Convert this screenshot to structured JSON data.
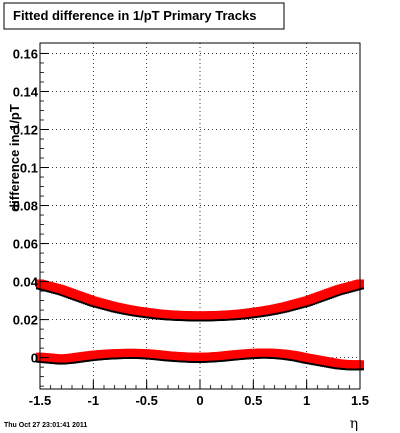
{
  "chart_data": {
    "type": "scatter",
    "title": "Fitted difference in 1/pT  Primary Tracks",
    "ylabel": "difference in 1/pT",
    "xlabel": "η",
    "xlim": [
      -1.5,
      1.5
    ],
    "ylim": [
      -0.0165,
      0.1655
    ],
    "grid": true,
    "x_ticks": [
      -1.5,
      -1,
      -0.5,
      0,
      0.5,
      1,
      1.5
    ],
    "x_tick_labels": [
      "-1.5",
      "-1",
      "-0.5",
      "0",
      "0.5",
      "1",
      "1.5"
    ],
    "y_ticks": [
      0,
      0.02,
      0.04,
      0.06,
      0.08,
      0.1,
      0.12,
      0.14,
      0.16
    ],
    "y_tick_labels": [
      "0",
      "0.02",
      "0.04",
      "0.06",
      "0.08",
      "0.1",
      "0.12",
      "0.14",
      "0.16"
    ],
    "series": [
      {
        "color": "#ff0000",
        "shadow_color": "#000000",
        "x": [
          -1.5,
          -1.4,
          -1.3,
          -1.2,
          -1.1,
          -1.0,
          -0.9,
          -0.8,
          -0.7,
          -0.6,
          -0.5,
          -0.4,
          -0.3,
          -0.2,
          -0.1,
          0.0,
          0.1,
          0.2,
          0.3,
          0.4,
          0.5,
          0.6,
          0.7,
          0.8,
          0.9,
          1.0,
          1.1,
          1.2,
          1.3,
          1.4,
          1.5
        ],
        "values": [
          0.039,
          0.0375,
          0.036,
          0.034,
          0.032,
          0.03,
          0.0285,
          0.027,
          0.0258,
          0.0248,
          0.024,
          0.0233,
          0.0228,
          0.0225,
          0.0223,
          0.0222,
          0.0223,
          0.0225,
          0.0228,
          0.0233,
          0.024,
          0.0248,
          0.0258,
          0.027,
          0.0285,
          0.03,
          0.032,
          0.034,
          0.036,
          0.0375,
          0.039
        ]
      },
      {
        "color": "#ff0000",
        "shadow_color": "#000000",
        "x": [
          -1.5,
          -1.4,
          -1.3,
          -1.2,
          -1.1,
          -1.0,
          -0.9,
          -0.8,
          -0.7,
          -0.6,
          -0.5,
          -0.4,
          -0.3,
          -0.2,
          -0.1,
          0.0,
          0.1,
          0.2,
          0.3,
          0.4,
          0.5,
          0.6,
          0.7,
          0.8,
          0.9,
          1.0,
          1.1,
          1.2,
          1.3,
          1.4,
          1.5
        ],
        "values": [
          0.0005,
          0.0,
          -0.0005,
          0.0,
          0.0008,
          0.0015,
          0.002,
          0.0023,
          0.0025,
          0.0025,
          0.0023,
          0.0018,
          0.0012,
          0.0008,
          0.0005,
          0.0004,
          0.0006,
          0.001,
          0.0016,
          0.0021,
          0.0025,
          0.0027,
          0.0025,
          0.002,
          0.0012,
          0.0,
          -0.001,
          -0.002,
          -0.003,
          -0.0035,
          -0.0035
        ]
      }
    ]
  },
  "footer": {
    "date": "Thu Oct 27 23:01:41 2011"
  }
}
